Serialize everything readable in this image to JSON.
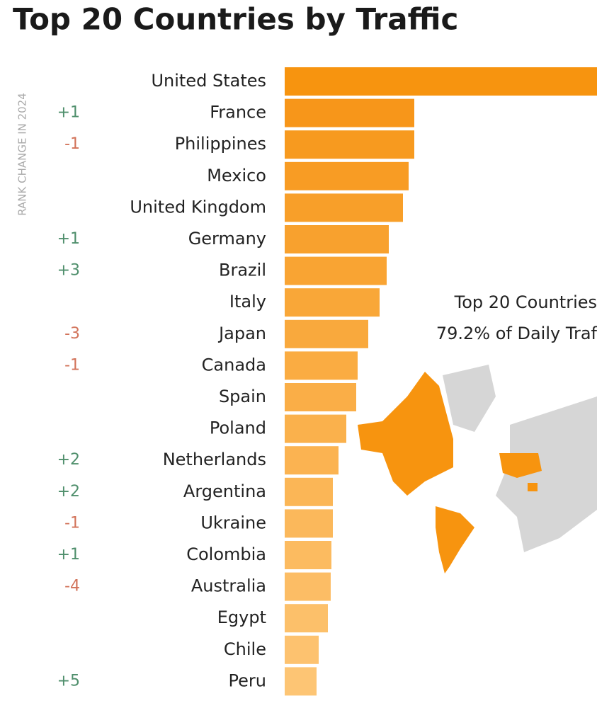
{
  "chart_data": {
    "type": "bar",
    "orientation": "horizontal",
    "title": "Top 20 Countries by Traffic",
    "side_label": "RANK CHANGE IN 2024",
    "annotations": [
      "Top 20 Countries",
      "79.2% of Daily Traf"
    ],
    "categories": [
      "United States",
      "France",
      "Philippines",
      "Mexico",
      "United Kingdom",
      "Germany",
      "Brazil",
      "Italy",
      "Japan",
      "Canada",
      "Spain",
      "Poland",
      "Netherlands",
      "Argentina",
      "Ukraine",
      "Colombia",
      "Australia",
      "Egypt",
      "Chile",
      "Peru"
    ],
    "values": [
      441,
      183,
      183,
      175,
      167,
      147,
      144,
      134,
      118,
      103,
      101,
      87,
      76,
      68,
      68,
      66,
      65,
      61,
      48,
      45
    ],
    "rank_changes": [
      null,
      "+1",
      "-1",
      null,
      null,
      "+1",
      "+3",
      null,
      "-3",
      "-1",
      null,
      null,
      "+2",
      "+2",
      "-1",
      "+1",
      "-4",
      null,
      null,
      "+5"
    ],
    "colors": [
      "#f7940f",
      "#f7961a",
      "#f79a1f",
      "#f89c24",
      "#f89f29",
      "#f8a12e",
      "#f9a433",
      "#f9a738",
      "#f9a93d",
      "#faac42",
      "#faae47",
      "#fab14c",
      "#fbb351",
      "#fbb656",
      "#fbb85b",
      "#fcbb60",
      "#fcbd65",
      "#fcc06a",
      "#fdc26f",
      "#fdc574"
    ],
    "rise_color": "#4f8f6c",
    "fall_color": "#d2735a"
  }
}
